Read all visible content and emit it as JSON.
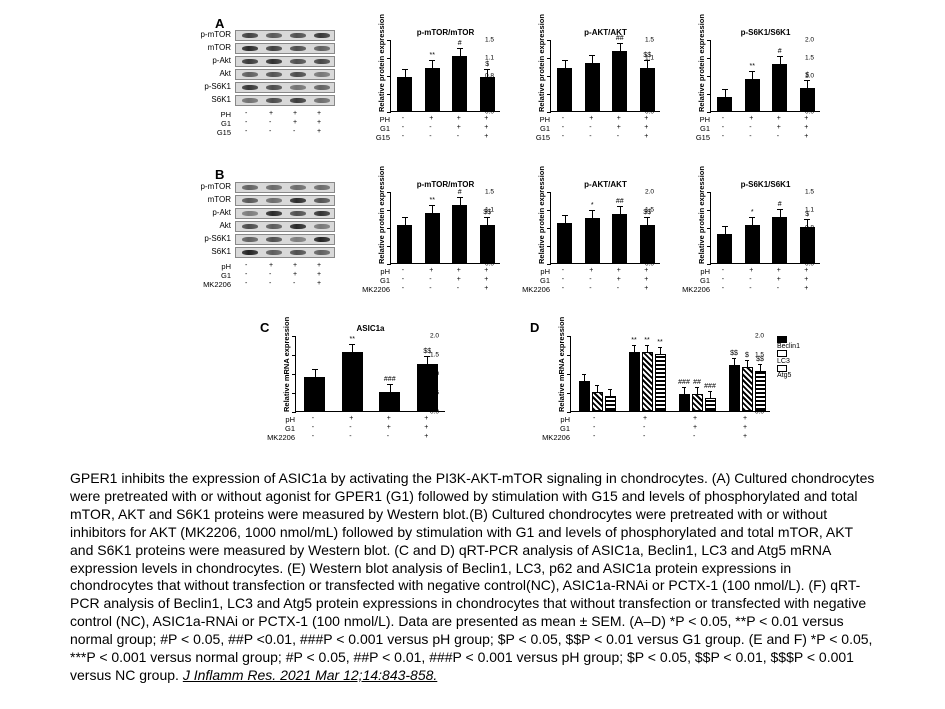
{
  "panelLetters": {
    "A": "A",
    "B": "B",
    "C": "C",
    "D": "D"
  },
  "blotLabelsA": [
    "p-mTOR",
    "mTOR",
    "p-Akt",
    "Akt",
    "p-S6K1",
    "S6K1"
  ],
  "blotLabelsB": [
    "p-mTOR",
    "mTOR",
    "p-Akt",
    "Akt",
    "p-S6K1",
    "S6K1"
  ],
  "treatA": {
    "labels": [
      "PH",
      "G1",
      "G15"
    ],
    "matrix": [
      [
        "-",
        "+",
        "+",
        "+"
      ],
      [
        "-",
        "-",
        "+",
        "+"
      ],
      [
        "-",
        "-",
        "-",
        "+"
      ]
    ]
  },
  "treatB": {
    "labels": [
      "pH",
      "G1",
      "MK2206"
    ],
    "matrix": [
      [
        "-",
        "+",
        "+",
        "+"
      ],
      [
        "-",
        "-",
        "+",
        "+"
      ],
      [
        "-",
        "-",
        "-",
        "+"
      ]
    ]
  },
  "treatC": {
    "labels": [
      "pH",
      "G1",
      "MK2206"
    ],
    "matrix": [
      [
        "-",
        "+",
        "+",
        "+"
      ],
      [
        "-",
        "-",
        "+",
        "+"
      ],
      [
        "-",
        "-",
        "-",
        "+"
      ]
    ]
  },
  "treatD": {
    "labels": [
      "pH",
      "G1",
      "MK2206"
    ],
    "matrix": [
      [
        "-",
        "+",
        "+",
        "+"
      ],
      [
        "-",
        "-",
        "+",
        "+"
      ],
      [
        "-",
        "-",
        "-",
        "+"
      ]
    ]
  },
  "chartsA": [
    {
      "title": "p-mTOR/mTOR",
      "ylabel": "Relative protein expression",
      "ymax": 1.5,
      "bars": [
        0.7,
        0.9,
        1.15,
        0.7
      ],
      "sig": [
        "",
        "**",
        "#",
        "$"
      ]
    },
    {
      "title": "p-AKT/AKT",
      "ylabel": "Relative protein expression",
      "ymax": 1.5,
      "bars": [
        0.9,
        1.0,
        1.25,
        0.9
      ],
      "sig": [
        "",
        "",
        "##",
        "$$"
      ]
    },
    {
      "title": "p-S6K1/S6K1",
      "ylabel": "Relative protein expression",
      "ymax": 2.0,
      "bars": [
        0.4,
        0.9,
        1.3,
        0.65
      ],
      "sig": [
        "",
        "**",
        "#",
        "$"
      ]
    }
  ],
  "chartsB": [
    {
      "title": "p-mTOR/mTOR",
      "ylabel": "Relative protein expression",
      "ymax": 1.5,
      "bars": [
        0.8,
        1.05,
        1.2,
        0.8
      ],
      "sig": [
        "",
        "**",
        "#",
        "$$"
      ]
    },
    {
      "title": "p-AKT/AKT",
      "ylabel": "Relative protein expression",
      "ymax": 2.0,
      "bars": [
        1.1,
        1.25,
        1.35,
        1.05
      ],
      "sig": [
        "",
        "*",
        "##",
        "$$"
      ]
    },
    {
      "title": "p-S6K1/S6K1",
      "ylabel": "Relative protein expression",
      "ymax": 1.5,
      "bars": [
        0.6,
        0.8,
        0.95,
        0.75
      ],
      "sig": [
        "",
        "*",
        "#",
        "$"
      ]
    }
  ],
  "chartC": {
    "title": "ASIC1a",
    "ylabel": "Relative mRNA expression",
    "ymax": 2.0,
    "bars": [
      0.9,
      1.55,
      0.5,
      1.25
    ],
    "sig": [
      "",
      "**",
      "###",
      "$$"
    ]
  },
  "chartD": {
    "ylabel": "Relative mRNA expression",
    "ymax": 2.0,
    "legend": [
      "Beclin1",
      "LC3",
      "Atg5"
    ],
    "groups": [
      {
        "vals": [
          0.8,
          0.5,
          0.4
        ],
        "sig": [
          "",
          "",
          ""
        ]
      },
      {
        "vals": [
          1.55,
          1.55,
          1.5
        ],
        "sig": [
          "**",
          "**",
          "**"
        ]
      },
      {
        "vals": [
          0.45,
          0.45,
          0.35
        ],
        "sig": [
          "###",
          "##",
          "###"
        ]
      },
      {
        "vals": [
          1.2,
          1.15,
          1.05
        ],
        "sig": [
          "$$",
          "$",
          "$$"
        ]
      }
    ]
  },
  "chartTreatA": {
    "labels": [
      "PH",
      "G1",
      "G15"
    ],
    "matrix": [
      [
        "-",
        "+",
        "+",
        "+"
      ],
      [
        "-",
        "-",
        "+",
        "+"
      ],
      [
        "-",
        "-",
        "-",
        "+"
      ]
    ]
  },
  "chartTreatB": {
    "labels": [
      "pH",
      "G1",
      "MK2206"
    ],
    "matrix": [
      [
        "-",
        "+",
        "+",
        "+"
      ],
      [
        "-",
        "-",
        "+",
        "+"
      ],
      [
        "-",
        "-",
        "-",
        "+"
      ]
    ]
  },
  "caption": {
    "text1": "GPER1 inhibits the expression of ASIC1a by activating the PI3K-AKT-mTOR signaling in chondrocytes. (A) Cultured chondrocytes were pretreated with or without agonist for GPER1 (G1) followed by stimulation with G15 and levels of phosphorylated and total mTOR, AKT and S6K1 proteins were measured by Western blot.(B) Cultured chondrocytes were pretreated with or without inhibitors for AKT (MK2206, 1000 nmol/mL) followed by stimulation with G1 and levels of phosphorylated and total mTOR, AKT and S6K1 proteins were measured by Western blot. (C and D) qRT-PCR analysis of ASIC1a, Beclin1, LC3 and Atg5 mRNA expression levels in chondrocytes. (E) Western blot analysis of Beclin1, LC3, p62 and ASIC1a protein expressions in chondrocytes that without transfection or transfected with negative control(NC), ASIC1a-RNAi or PCTX-1 (100 nmol/L). (F) qRT-PCR analysis of Beclin1, LC3 and Atg5 protein expressions in chondrocytes that without transfection or transfected with negative control (NC), ASIC1a-RNAi or PCTX-1 (100 nmol/L). Data are presented as mean ± SEM. (A–D) *P < 0.05, **P < 0.01 versus normal group; #P < 0.05, ##P <0.01, ###P < 0.001 versus pH group; $P < 0.05, $$P < 0.01 versus G1 group. (E and F) *P < 0.05, ***P < 0.001 versus normal group; #P < 0.05, ##P < 0.01, ###P < 0.001 versus pH group; $P < 0.05, $$P < 0.01, $$$P < 0.001 versus NC group. ",
    "cite": "J Inflamm Res. 2021 Mar 12;14:843-858."
  },
  "colors": {
    "bar": "#000000",
    "bg": "#ffffff",
    "blot": "#d9d9d9"
  }
}
